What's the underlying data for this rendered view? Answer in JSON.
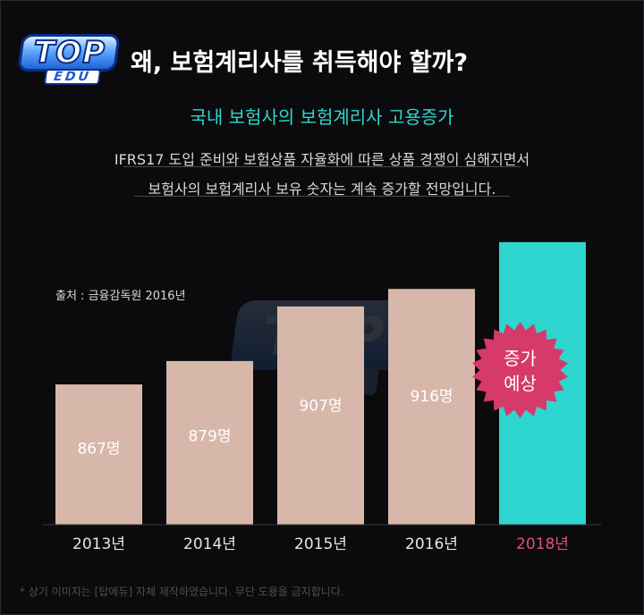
{
  "header": {
    "logo_top": "TOP",
    "logo_edu": "EDU",
    "title": "왜, 보험계리사를 취득해야 할까?",
    "subtitle": "국내 보험사의 보험계리사 고용증가",
    "description_line1": "IFRS17 도입 준비와 보험상품 자율화에 따른 상품 경쟁이 심해지면서",
    "description_line2": "보험사의 보험계리사 보유 숫자는 계속 증가할 전망입니다."
  },
  "source_note": "출처 : 금융감독원 2016년",
  "footnote": "* 상기 이미지는 [탑에듀] 자체 제작하였습니다. 무단 도용을 금지합니다.",
  "colors": {
    "background": "#0b0b0d",
    "bar": "#d8b7ab",
    "highlight_bar": "#2dd6cf",
    "highlight_label": "#e0507a",
    "badge": "#d63a6a",
    "accent_text": "#2dd6cf"
  },
  "chart_data": {
    "type": "bar",
    "title": "국내 보험사의 보험계리사 고용증가",
    "categories": [
      "2013년",
      "2014년",
      "2015년",
      "2016년",
      "2018년"
    ],
    "values": [
      867,
      879,
      907,
      916,
      null
    ],
    "value_labels": [
      "867명",
      "879명",
      "907명",
      "916명",
      ""
    ],
    "projected_value_estimate": 940,
    "highlight_index": 4,
    "highlight_badge": [
      "증가",
      "예상"
    ],
    "grid": false,
    "legend": "none",
    "ylim": [
      795,
      945
    ]
  }
}
